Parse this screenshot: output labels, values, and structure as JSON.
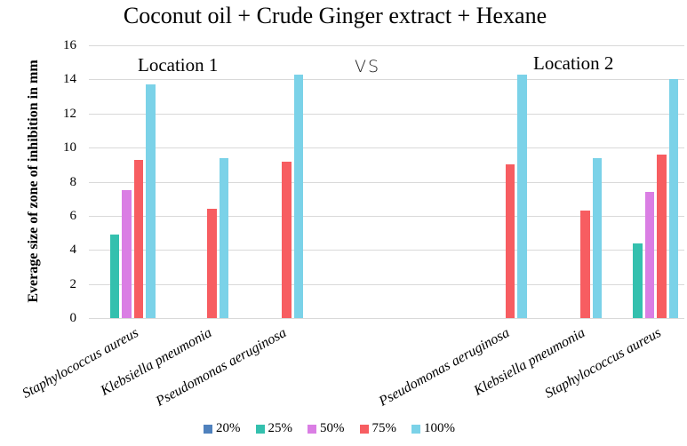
{
  "title": "Coconut oil + Crude Ginger extract + Hexane",
  "annotations": {
    "location1": "Location 1",
    "vs": "VS",
    "location2": "Location 2"
  },
  "chart_data": {
    "type": "bar",
    "title": "Coconut oil + Crude Ginger extract + Hexane",
    "ylabel": "Everage size of zone of inhibition in mm",
    "xlabel": "",
    "ylim": [
      0,
      16
    ],
    "yticks": [
      0,
      2,
      4,
      6,
      8,
      10,
      12,
      14,
      16
    ],
    "grid": true,
    "legend_position": "bottom",
    "series_names": [
      "20%",
      "25%",
      "50%",
      "75%",
      "100%"
    ],
    "series_colors": [
      "#4f81bd",
      "#34c0ae",
      "#da7ee4",
      "#f75d61",
      "#7bd2e8"
    ],
    "groups": [
      {
        "location": "Location 1",
        "category": "Staphylococcus aureus",
        "values": [
          0,
          4.9,
          7.5,
          9.3,
          13.7
        ]
      },
      {
        "location": "Location 1",
        "category": "Klebsiella pneumonia",
        "values": [
          0,
          0,
          0,
          6.4,
          9.4
        ]
      },
      {
        "location": "Location 1",
        "category": "Pseudomonas aeruginosa",
        "values": [
          0,
          0,
          0,
          9.2,
          14.3
        ]
      },
      {
        "location": "Location 2",
        "category": "Pseudomonas aeruginosa",
        "values": [
          0,
          0,
          0,
          9.0,
          14.3
        ]
      },
      {
        "location": "Location 2",
        "category": "Klebsiella pneumonia",
        "values": [
          0,
          0,
          0,
          6.3,
          9.4
        ]
      },
      {
        "location": "Location 2",
        "category": "Staphylococcus aureus",
        "values": [
          0,
          4.4,
          7.4,
          9.6,
          14.0
        ]
      }
    ],
    "gridline_color": "#d9d9d9"
  }
}
